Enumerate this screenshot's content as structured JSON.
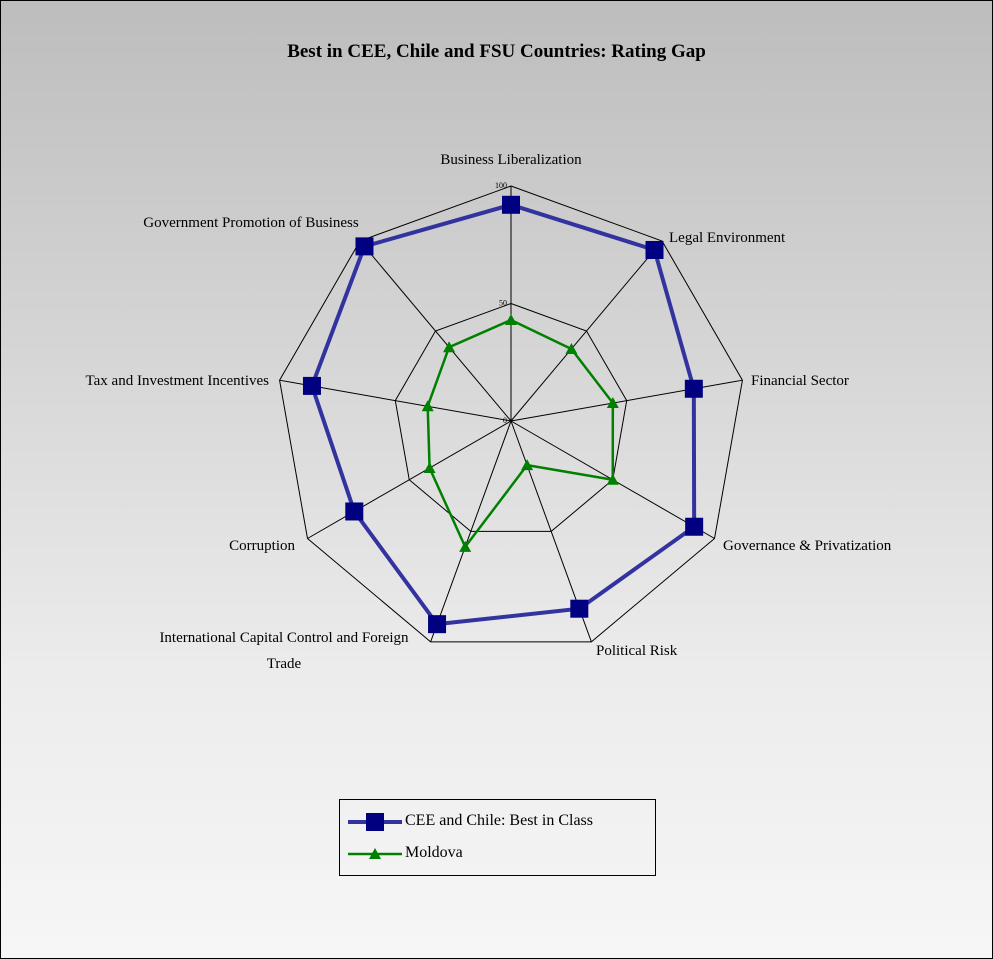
{
  "chart_data": {
    "type": "radar",
    "title": "Best in CEE, Chile and FSU Countries: Rating Gap",
    "categories": [
      "Business Liberalization",
      "Legal Environment",
      "Financial Sector",
      "Governance & Privatization",
      "Political Risk",
      "International Capital Control and Foreign Trade",
      "Corruption",
      "Tax and Investment Incentives",
      "Government Promotion of Business"
    ],
    "ylim": [
      0,
      100
    ],
    "yticks": [
      0,
      50,
      100
    ],
    "grid": true,
    "series": [
      {
        "name": "CEE and Chile: Best in Class",
        "color": "#3333a0",
        "marker_color": "#000080",
        "marker": "square",
        "values": [
          92,
          95,
          79,
          90,
          85,
          92,
          77,
          86,
          97
        ]
      },
      {
        "name": "Moldova",
        "color": "#008000",
        "marker_color": "#008000",
        "marker": "triangle",
        "values": [
          43,
          40,
          44,
          50,
          20,
          57,
          40,
          36,
          41
        ]
      }
    ],
    "legend": "bottom"
  }
}
